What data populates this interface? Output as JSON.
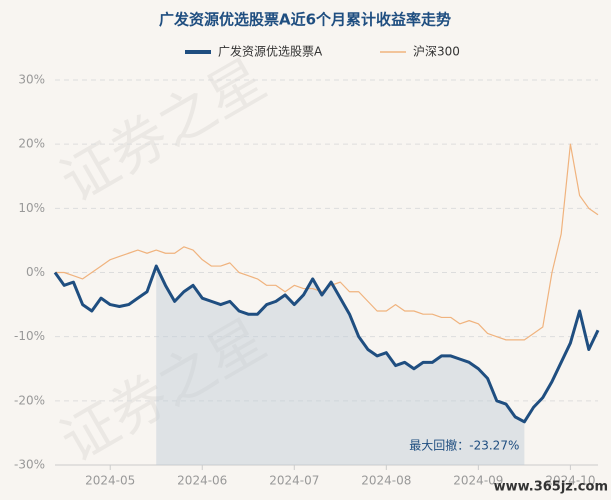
{
  "chart_data": {
    "type": "line",
    "title": "广发资源优选股票A近6个月累计收益率走势",
    "categories": [
      null,
      null,
      null,
      null,
      null,
      null,
      "2024-05",
      null,
      null,
      null,
      null,
      null,
      null,
      null,
      null,
      null,
      "2024-06",
      null,
      null,
      null,
      null,
      null,
      null,
      null,
      null,
      null,
      "2024-07",
      null,
      null,
      null,
      null,
      null,
      null,
      null,
      null,
      null,
      "2024-08",
      null,
      null,
      null,
      null,
      null,
      null,
      null,
      null,
      null,
      "2024-09",
      null,
      null,
      null,
      null,
      null,
      null,
      null,
      null,
      null,
      "2024-10",
      null,
      null,
      null
    ],
    "series": [
      {
        "name": "广发资源优选股票A",
        "color": "#1f4e80",
        "values": [
          0,
          -2,
          -1.5,
          -5,
          -6,
          -4,
          -5,
          -5.3,
          -5,
          -4,
          -3,
          1,
          -2,
          -4.5,
          -3,
          -2,
          -4,
          -4.5,
          -5,
          -4.5,
          -6,
          -6.5,
          -6.5,
          -5,
          -4.5,
          -3.5,
          -5,
          -3.5,
          -1,
          -3.5,
          -1.5,
          -4,
          -6.5,
          -10,
          -12,
          -13,
          -12.5,
          -14.5,
          -14,
          -15,
          -14,
          -14,
          -13,
          -13,
          -13.5,
          -14,
          -15,
          -16.5,
          -20,
          -20.5,
          -22.5,
          -23.27,
          -21,
          -19.5,
          -17,
          -14,
          -11,
          -6,
          -12,
          -9
        ]
      },
      {
        "name": "沪深300",
        "color": "#f0b37e",
        "values": [
          0,
          0,
          -0.5,
          -1,
          0,
          1,
          2,
          2.5,
          3,
          3.5,
          3,
          3.5,
          3,
          3,
          4,
          3.5,
          2,
          1,
          1,
          1.5,
          0,
          -0.5,
          -1,
          -2,
          -2,
          -3,
          -2,
          -2.5,
          -2.5,
          -3,
          -2,
          -1.5,
          -3,
          -3,
          -4.5,
          -6,
          -6,
          -5,
          -6,
          -6,
          -6.5,
          -6.5,
          -7,
          -7,
          -8,
          -7.5,
          -8,
          -9.5,
          -10,
          -10.5,
          -10.5,
          -10.5,
          -9.5,
          -8.5,
          0,
          6,
          20,
          12,
          10,
          9
        ]
      }
    ],
    "ylim": [
      -30,
      30
    ],
    "yticks": [
      {
        "value": -30,
        "label": "-30%"
      },
      {
        "value": -20,
        "label": "-20%"
      },
      {
        "value": -10,
        "label": "-10%"
      },
      {
        "value": 0,
        "label": "0%"
      },
      {
        "value": 10,
        "label": "10%"
      },
      {
        "value": 20,
        "label": "20%"
      },
      {
        "value": 30,
        "label": "30%"
      }
    ],
    "grid": true,
    "annotation": "最大回撤：-23.27%",
    "watermark": "证券之星",
    "site_mark": "www.365jz.com"
  }
}
